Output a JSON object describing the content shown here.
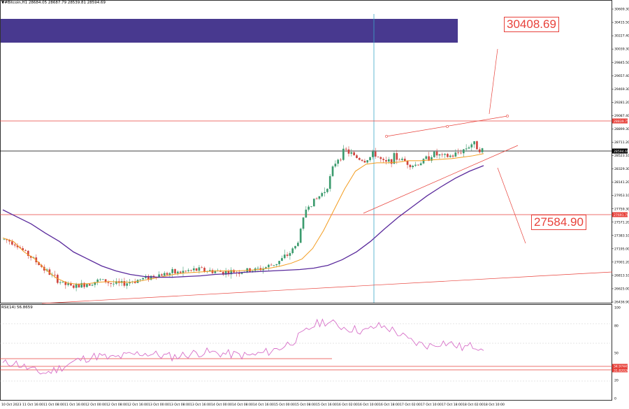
{
  "header": {
    "symbol_line": "▼#Bitcoin,H1  28684.05 28687.79 28539.81 28594.69"
  },
  "rsi": {
    "label": "RSI(14) 56.8659",
    "scale": [
      "100",
      "80",
      "50",
      "20",
      "0"
    ],
    "levels_labels": [
      "34.97447",
      "31.82026"
    ]
  },
  "annotations": {
    "upper_target": "30408.69",
    "lower_target": "27584.90"
  },
  "price_scale": {
    "labels": [
      "30609.30",
      "30415.50",
      "30227.40",
      "30039.30",
      "29845.50",
      "29657.40",
      "29469.30",
      "29281.20",
      "29087.40",
      "28899.30",
      "28711.20",
      "28523.10",
      "28329.30",
      "28141.20",
      "27953.10",
      "27759.30",
      "27571.20",
      "27383.10",
      "27195.00",
      "27001.20",
      "26813.10",
      "26625.00",
      "26436.90"
    ],
    "current_price_tag": "28594.69",
    "resistance_tag": "28839.75",
    "support_tag": "27691.78"
  },
  "time_scale": {
    "labels": [
      "10 Oct 2023",
      "11 Oct 16:00",
      "11 Oct 08:00",
      "11 Oct 16:00",
      "12 Oct 00:00",
      "12 Oct 08:00",
      "12 Oct 16:00",
      "13 Oct 00:00",
      "13 Oct 08:00",
      "13 Oct 16:00",
      "14 Oct 00:00",
      "14 Oct 08:00",
      "14 Oct 16:00",
      "15 Oct 00:00",
      "15 Oct 08:00",
      "15 Oct 16:00",
      "16 Oct 02:00",
      "16 Oct 10:00",
      "16 Oct 18:00",
      "17 Oct 02:00",
      "17 Oct 10:00",
      "17 Oct 18:00",
      "18 Oct 02:00",
      "18 Oct 10:00"
    ]
  },
  "colors": {
    "bull": "#3c9b6e",
    "bear": "#d0453f",
    "fast_ma": "#f39c1f",
    "slow_ma": "#5a2a9c",
    "level_line": "#e8423b",
    "rsi_line": "#d76fc8",
    "zone": "#48398f",
    "vline": "#3ca8c8"
  },
  "chart_data": {
    "type": "candlestick",
    "series": [
      {
        "name": "#Bitcoin,H1",
        "close_path": [
          27330,
          27290,
          27160,
          27050,
          26920,
          26800,
          26700,
          26650,
          26680,
          26720,
          26750,
          26700,
          26690,
          26730,
          26760,
          26800,
          26830,
          26850,
          26860,
          26880,
          26900,
          26880,
          26870,
          26860,
          26870,
          26880,
          26900,
          26940,
          27000,
          27100,
          27250,
          27800,
          27900,
          28050,
          28450,
          28600,
          28500,
          28450,
          28550,
          28400,
          28500,
          28450,
          28380,
          28450,
          28550,
          28500,
          28520,
          28600,
          28700,
          28594.69
        ]
      },
      {
        "name": "MA fast",
        "values": [
          27350,
          27300,
          27150,
          27050,
          26900,
          26780,
          26710,
          26690,
          26700,
          26720,
          26730,
          26720,
          26720,
          26740,
          26770,
          26800,
          26830,
          26850,
          26860,
          26870,
          26880,
          26880,
          26880,
          26890,
          26900,
          26920,
          26950,
          26990,
          27050,
          27200,
          27450,
          27750,
          28050,
          28300,
          28400,
          28420,
          28420,
          28430,
          28450,
          28450,
          28460,
          28470,
          28480,
          28500,
          28520,
          28550
        ]
      },
      {
        "name": "MA slow",
        "values": [
          27750,
          27650,
          27550,
          27420,
          27300,
          27150,
          27050,
          26950,
          26880,
          26830,
          26800,
          26790,
          26790,
          26800,
          26810,
          26830,
          26840,
          26860,
          26870,
          26880,
          26890,
          26900,
          26920,
          26960,
          27040,
          27150,
          27300,
          27480,
          27650,
          27800,
          27950,
          28080,
          28200,
          28300,
          28380
        ]
      }
    ],
    "annotated_levels": [
      30408.69,
      28839.75,
      28594.69,
      27691.78,
      27584.9
    ],
    "ylim": [
      26436.9,
      30609.3
    ],
    "rsi": {
      "values": [
        38,
        40,
        35,
        30,
        28,
        32,
        37,
        42,
        45,
        47,
        44,
        46,
        48,
        50,
        49,
        47,
        46,
        48,
        50,
        51,
        50,
        49,
        48,
        47,
        49,
        52,
        56,
        62,
        70,
        80,
        85,
        82,
        78,
        76,
        74,
        80,
        78,
        72,
        64,
        60,
        58,
        62,
        60,
        56,
        58,
        56.87
      ],
      "ylim": [
        0,
        100
      ],
      "levels": [
        34.97447,
        31.82026
      ]
    }
  }
}
